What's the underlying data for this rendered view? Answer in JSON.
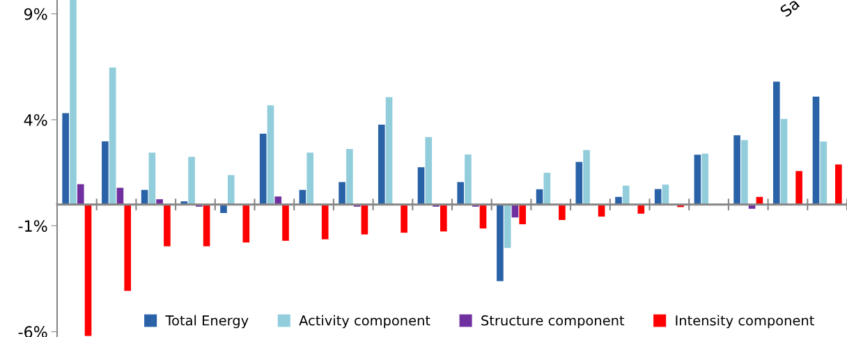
{
  "chart_data": {
    "type": "bar",
    "categories": [
      null,
      null,
      null,
      null,
      null,
      null,
      null,
      null,
      null,
      null,
      null,
      null,
      null,
      null,
      null,
      null,
      null,
      null,
      null,
      null
    ],
    "series": [
      {
        "name": "Total Energy",
        "color": "#2a62a8",
        "values": [
          4.31,
          2.98,
          0.69,
          0.15,
          -0.4,
          3.34,
          0.69,
          1.06,
          3.77,
          1.76,
          1.06,
          -3.61,
          0.72,
          2.01,
          0.36,
          0.73,
          2.35,
          3.27,
          5.8,
          5.09
        ]
      },
      {
        "name": "Activity component",
        "color": "#92cddc",
        "values": [
          9.65,
          6.46,
          2.45,
          2.25,
          1.39,
          4.68,
          2.45,
          2.62,
          5.07,
          3.19,
          2.36,
          -2.05,
          1.5,
          2.57,
          0.89,
          0.94,
          2.4,
          3.04,
          4.04,
          2.97
        ]
      },
      {
        "name": "Structure component",
        "color": "#7030a0",
        "values": [
          0.96,
          0.79,
          0.25,
          -0.1,
          0.0,
          0.38,
          -0.02,
          -0.1,
          null,
          -0.1,
          -0.1,
          -0.61,
          0.0,
          0.0,
          null,
          null,
          -0.03,
          -0.2,
          0.0,
          null
        ]
      },
      {
        "name": "Intensity component",
        "color": "#ff0000",
        "values": [
          -6.2,
          -4.07,
          -1.97,
          -1.97,
          -1.79,
          -1.71,
          -1.64,
          -1.41,
          -1.33,
          -1.27,
          -1.13,
          -0.93,
          -0.73,
          -0.57,
          -0.43,
          -0.12,
          0.0,
          0.36,
          1.58,
          1.89
        ]
      }
    ],
    "ylim": [
      -6.25,
      9.65
    ],
    "yticks": [
      {
        "value": 9,
        "label": "9%"
      },
      {
        "value": 4,
        "label": "4%"
      },
      {
        "value": -1,
        "label": "-1%"
      },
      {
        "value": -6,
        "label": "-6%"
      }
    ],
    "grid": false,
    "legend": "bottom",
    "annotations": [
      "Sa"
    ]
  }
}
